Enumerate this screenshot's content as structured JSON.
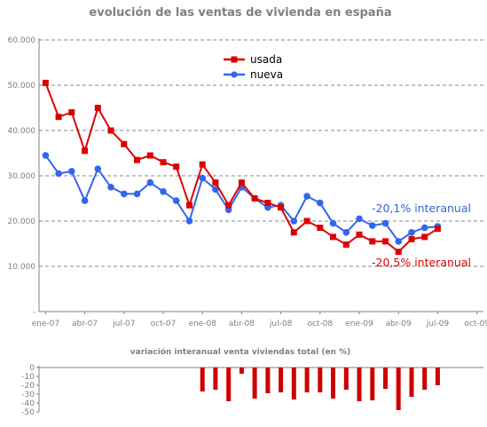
{
  "chart_data": [
    {
      "type": "line",
      "title": "evolución de las ventas de vivienda en españa",
      "xlabel": "",
      "ylabel": "",
      "x_ticks": [
        "ene-07",
        "abr-07",
        "jul-07",
        "oct-07",
        "ene-08",
        "abr-08",
        "jul-08",
        "oct-08",
        "ene-09",
        "abr-09",
        "jul-09",
        "oct-09"
      ],
      "y_ticks": [
        "-",
        "10.000",
        "20.000",
        "30.000",
        "40.000",
        "50.000",
        "60.000"
      ],
      "ylim": [
        0,
        60000
      ],
      "grid": true,
      "legend": "top-center",
      "series": [
        {
          "name": "usada",
          "color": "#dd0000",
          "values": [
            50500,
            43000,
            44000,
            35500,
            45000,
            40000,
            37000,
            33500,
            34500,
            33000,
            32000,
            23500,
            32500,
            28500,
            23500,
            28500,
            25000,
            24000,
            23000,
            17500,
            20000,
            18500,
            16500,
            14800,
            17000,
            15500,
            15500,
            13200,
            16000,
            16500,
            18300
          ]
        },
        {
          "name": "nueva",
          "color": "#3366ee",
          "values": [
            34500,
            30500,
            31000,
            24500,
            31500,
            27500,
            26000,
            26000,
            28500,
            26500,
            24500,
            20000,
            29500,
            27000,
            22500,
            27500,
            25000,
            23000,
            23500,
            20000,
            25500,
            24000,
            19500,
            17500,
            20500,
            19000,
            19500,
            15500,
            17500,
            18500,
            18800
          ]
        }
      ],
      "annotations": [
        {
          "text": "-20,1% interanual",
          "color": "#3366cc"
        },
        {
          "text": "-20,5% interanual",
          "color": "#dd0000"
        }
      ]
    },
    {
      "type": "bar",
      "title": "variación interanual venta viviendas total (en %)",
      "y_ticks": [
        "0",
        "-10",
        "-20",
        "-30",
        "-40",
        "-50"
      ],
      "ylim": [
        -50,
        0
      ],
      "grid": false,
      "color": "#cc0000",
      "values": [
        null,
        null,
        null,
        null,
        null,
        null,
        null,
        null,
        null,
        null,
        null,
        null,
        -27,
        -25,
        -38,
        -7,
        -35,
        -29,
        -28,
        -36,
        -28,
        -28,
        -35,
        -25,
        -38,
        -37,
        -24,
        -48,
        -33,
        -25,
        -20
      ]
    }
  ]
}
